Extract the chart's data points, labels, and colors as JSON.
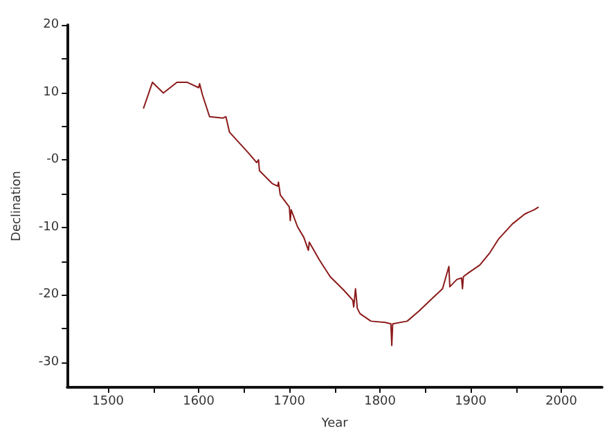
{
  "chart_data": {
    "type": "line",
    "xlabel": "Year",
    "ylabel": "Declination",
    "xlim": [
      1455,
      2045
    ],
    "ylim": [
      -33.7,
      20
    ],
    "xticks": [
      1500,
      {
        "value": 1550,
        "label": null
      },
      1600,
      {
        "value": 1650,
        "label": null
      },
      1700,
      {
        "value": 1750,
        "label": null
      },
      1800,
      {
        "value": 1850,
        "label": null
      },
      1900,
      {
        "value": 1950,
        "label": null
      },
      2000
    ],
    "yticks": [
      -30,
      {
        "value": -25,
        "label": null
      },
      -20,
      {
        "value": -15,
        "label": null
      },
      -10,
      {
        "value": -5,
        "label": null
      },
      {
        "value": 0,
        "label": "-0"
      },
      {
        "value": 5,
        "label": null
      },
      10,
      {
        "value": 15,
        "label": null
      },
      20
    ],
    "grid": false,
    "marker": "none",
    "line_style": "solid",
    "series": [
      {
        "color": "#8b1a1a",
        "x": [
          1539,
          1549,
          1561,
          1576,
          1587,
          1600,
          1601,
          1604,
          1612,
          1627,
          1630,
          1634,
          1655,
          1664,
          1666,
          1667,
          1681,
          1687,
          1688,
          1690,
          1700,
          1701,
          1702,
          1709,
          1716,
          1721,
          1722,
          1733,
          1745,
          1760,
          1770,
          1771,
          1773,
          1775,
          1778,
          1790,
          1806,
          1812,
          1813,
          1814,
          1830,
          1843,
          1857,
          1869,
          1876,
          1877,
          1885,
          1890,
          1891,
          1892,
          1898,
          1910,
          1921,
          1931,
          1946,
          1960,
          1970,
          1975
        ],
        "values": [
          7.6,
          11.5,
          9.9,
          11.5,
          11.5,
          10.7,
          11.3,
          9.7,
          6.4,
          6.2,
          6.4,
          4.1,
          1.0,
          -0.4,
          0,
          -1.6,
          -3.5,
          -3.9,
          -3.3,
          -5.2,
          -7.0,
          -9,
          -7.4,
          -9.9,
          -11.5,
          -13.4,
          -12.2,
          -14.8,
          -17.3,
          -19.3,
          -20.8,
          -21.8,
          -19.1,
          -22,
          -22.8,
          -23.9,
          -24.1,
          -24.3,
          -27.5,
          -24.3,
          -23.9,
          -22.4,
          -20.6,
          -19.1,
          -15.8,
          -18.8,
          -17.7,
          -17.5,
          -19.1,
          -17.3,
          -16.7,
          -15.6,
          -13.8,
          -11.7,
          -9.5,
          -8.0,
          -7.4,
          -7.0
        ]
      }
    ]
  }
}
